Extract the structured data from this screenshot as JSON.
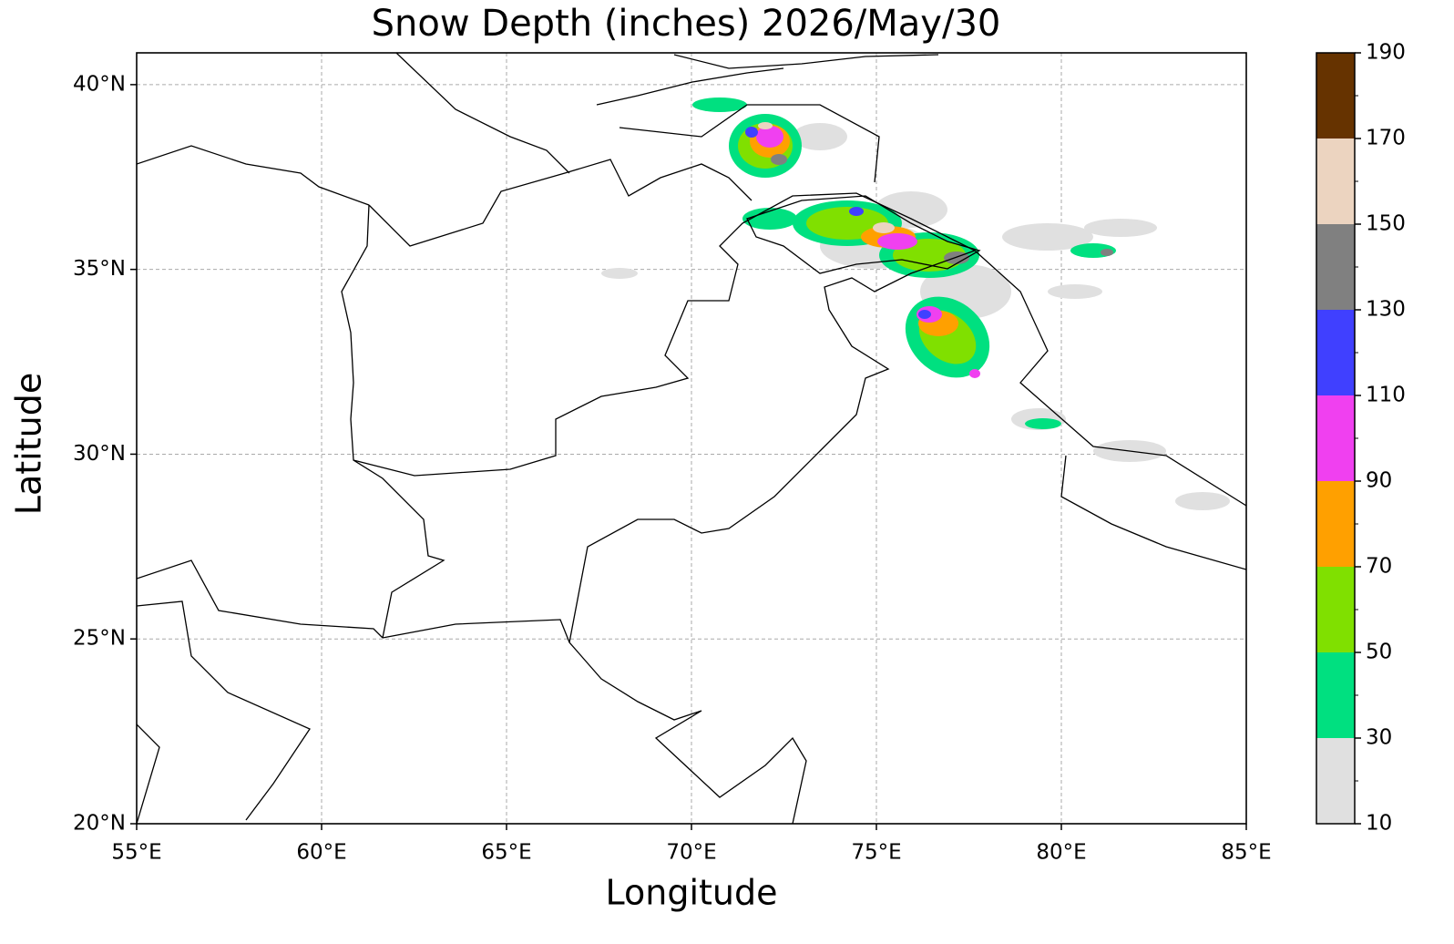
{
  "chart_data": {
    "type": "contour_map",
    "title": "Snow Depth (inches) 2026/May/30",
    "xlabel": "Longitude",
    "ylabel": "Latitude",
    "xlim": [
      55,
      85
    ],
    "ylim": [
      20,
      40.86
    ],
    "xticks": [
      {
        "value": 55,
        "label": "55°E"
      },
      {
        "value": 60,
        "label": "60°E"
      },
      {
        "value": 65,
        "label": "65°E"
      },
      {
        "value": 70,
        "label": "70°E"
      },
      {
        "value": 75,
        "label": "75°E"
      },
      {
        "value": 80,
        "label": "80°E"
      },
      {
        "value": 85,
        "label": "85°E"
      }
    ],
    "yticks": [
      {
        "value": 20,
        "label": "20°N"
      },
      {
        "value": 25,
        "label": "25°N"
      },
      {
        "value": 30,
        "label": "30°N"
      },
      {
        "value": 35,
        "label": "35°N"
      },
      {
        "value": 40,
        "label": "40°N"
      }
    ],
    "grid": true,
    "colorbar": {
      "levels": [
        10,
        30,
        50,
        70,
        90,
        110,
        130,
        150,
        170,
        190
      ],
      "colors": [
        "#e0e0e0",
        "#00e080",
        "#80e000",
        "#ffa000",
        "#f040f0",
        "#4040ff",
        "#808080",
        "#ecd4c0",
        "#663300"
      ],
      "minor_step": 10
    }
  }
}
